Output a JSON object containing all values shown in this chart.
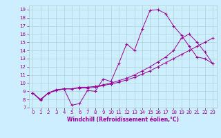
{
  "title": "",
  "xlabel": "Windchill (Refroidissement éolien,°C)",
  "ylabel": "",
  "bg_color": "#cceeff",
  "line_color": "#990099",
  "grid_color": "#aacccc",
  "xlim": [
    -0.5,
    23.5
  ],
  "ylim": [
    7,
    19.5
  ],
  "xticks": [
    0,
    1,
    2,
    3,
    4,
    5,
    6,
    7,
    8,
    9,
    10,
    11,
    12,
    13,
    14,
    15,
    16,
    17,
    18,
    19,
    20,
    21,
    22,
    23
  ],
  "yticks": [
    7,
    8,
    9,
    10,
    11,
    12,
    13,
    14,
    15,
    16,
    17,
    18,
    19
  ],
  "line1_x": [
    0,
    1,
    2,
    3,
    4,
    5,
    6,
    7,
    8,
    9,
    10,
    11,
    12,
    13,
    14,
    15,
    16,
    17,
    18,
    19,
    20,
    21,
    22,
    23
  ],
  "line1_y": [
    8.8,
    7.9,
    8.8,
    9.2,
    9.3,
    7.3,
    7.5,
    9.1,
    9.0,
    10.5,
    10.2,
    12.4,
    14.8,
    14.0,
    16.6,
    18.9,
    19.0,
    18.5,
    17.0,
    15.9,
    14.5,
    13.2,
    13.0,
    12.4
  ],
  "line2_x": [
    0,
    1,
    2,
    3,
    4,
    5,
    6,
    7,
    8,
    9,
    10,
    11,
    12,
    13,
    14,
    15,
    16,
    17,
    18,
    19,
    20,
    21,
    22,
    23
  ],
  "line2_y": [
    8.8,
    8.0,
    8.8,
    9.1,
    9.3,
    9.3,
    9.4,
    9.4,
    9.5,
    9.7,
    9.9,
    10.1,
    10.4,
    10.7,
    11.1,
    11.5,
    12.0,
    12.5,
    13.0,
    13.5,
    14.0,
    14.5,
    15.0,
    15.5
  ],
  "line3_x": [
    0,
    1,
    2,
    3,
    4,
    5,
    6,
    7,
    8,
    9,
    10,
    11,
    12,
    13,
    14,
    15,
    16,
    17,
    18,
    19,
    20,
    21,
    22,
    23
  ],
  "line3_y": [
    8.8,
    8.0,
    8.8,
    9.1,
    9.3,
    9.3,
    9.5,
    9.5,
    9.6,
    9.8,
    10.0,
    10.3,
    10.6,
    11.0,
    11.5,
    12.0,
    12.6,
    13.2,
    14.0,
    15.5,
    16.0,
    15.0,
    13.8,
    12.4
  ],
  "tick_fontsize": 5,
  "xlabel_fontsize": 5.5
}
